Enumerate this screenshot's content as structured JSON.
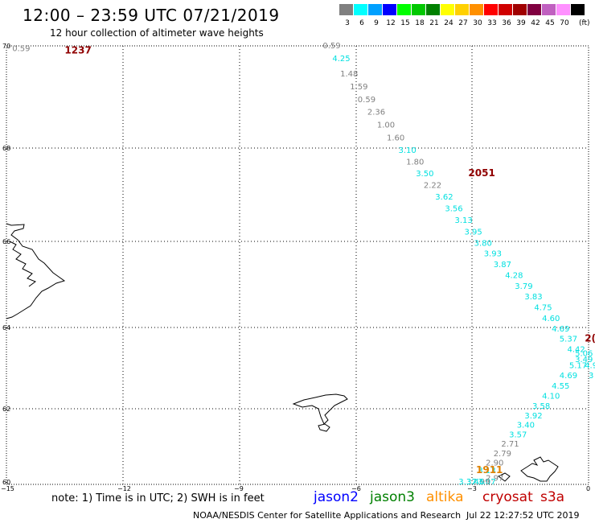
{
  "header": {
    "title": "12:00 – 23:59 UTC 07/21/2019",
    "subtitle": "12 hour collection of altimeter wave heights"
  },
  "legend": {
    "unit": "(ft)",
    "bins": [
      {
        "label": "3",
        "color": "#808080"
      },
      {
        "label": "6",
        "color": "#00ffff"
      },
      {
        "label": "9",
        "color": "#00a0ff"
      },
      {
        "label": "12",
        "color": "#0000ff"
      },
      {
        "label": "15",
        "color": "#00ff00"
      },
      {
        "label": "18",
        "color": "#00c800"
      },
      {
        "label": "21",
        "color": "#008000"
      },
      {
        "label": "24",
        "color": "#ffff00"
      },
      {
        "label": "27",
        "color": "#ffd000"
      },
      {
        "label": "30",
        "color": "#ff9000"
      },
      {
        "label": "33",
        "color": "#ff0000"
      },
      {
        "label": "36",
        "color": "#d00000"
      },
      {
        "label": "39",
        "color": "#a00000"
      },
      {
        "label": "42",
        "color": "#800040"
      },
      {
        "label": "45",
        "color": "#c060c0"
      },
      {
        "label": "70",
        "color": "#ff90ff"
      },
      {
        "label": "",
        "color": "#000000"
      }
    ]
  },
  "axes": {
    "lon_labels": [
      "−15",
      "−12",
      "−9",
      "−6",
      "−3",
      "0"
    ],
    "lat_labels": [
      "70",
      "68",
      "66",
      "64",
      "62",
      "60"
    ]
  },
  "tracks": [
    {
      "lon": -14.85,
      "lat": 69.9,
      "text": "0.59",
      "color": "#808080"
    },
    {
      "lon": -6.85,
      "lat": 69.95,
      "text": "0.59",
      "color": "#808080"
    },
    {
      "lon": -6.6,
      "lat": 69.7,
      "text": "4.25",
      "color": "#00e0e0"
    },
    {
      "lon": -6.4,
      "lat": 69.4,
      "text": "1.48",
      "color": "#808080"
    },
    {
      "lon": -6.15,
      "lat": 69.15,
      "text": "1.59",
      "color": "#808080"
    },
    {
      "lon": -5.95,
      "lat": 68.9,
      "text": "0.59",
      "color": "#808080"
    },
    {
      "lon": -5.7,
      "lat": 68.65,
      "text": "2.36",
      "color": "#808080"
    },
    {
      "lon": -5.45,
      "lat": 68.4,
      "text": "1.00",
      "color": "#808080"
    },
    {
      "lon": -5.2,
      "lat": 68.15,
      "text": "1.60",
      "color": "#808080"
    },
    {
      "lon": -4.9,
      "lat": 67.9,
      "text": "3.10",
      "color": "#00e0e0"
    },
    {
      "lon": -4.7,
      "lat": 67.65,
      "text": "1.80",
      "color": "#808080"
    },
    {
      "lon": -4.45,
      "lat": 67.4,
      "text": "3.50",
      "color": "#00e0e0"
    },
    {
      "lon": -4.25,
      "lat": 67.15,
      "text": "2.22",
      "color": "#808080"
    },
    {
      "lon": -3.95,
      "lat": 66.9,
      "text": "3.62",
      "color": "#00e0e0"
    },
    {
      "lon": -3.7,
      "lat": 66.65,
      "text": "3.56",
      "color": "#00e0e0"
    },
    {
      "lon": -3.45,
      "lat": 66.4,
      "text": "3.13",
      "color": "#00e0e0"
    },
    {
      "lon": -3.2,
      "lat": 66.15,
      "text": "3.95",
      "color": "#00e0e0"
    },
    {
      "lon": -2.95,
      "lat": 65.9,
      "text": "3.80",
      "color": "#00e0e0"
    },
    {
      "lon": -2.7,
      "lat": 65.65,
      "text": "3.93",
      "color": "#00e0e0"
    },
    {
      "lon": -2.45,
      "lat": 65.4,
      "text": "3.87",
      "color": "#00e0e0"
    },
    {
      "lon": -2.15,
      "lat": 65.15,
      "text": "4.28",
      "color": "#00e0e0"
    },
    {
      "lon": -1.9,
      "lat": 64.9,
      "text": "3.79",
      "color": "#00e0e0"
    },
    {
      "lon": -1.65,
      "lat": 64.65,
      "text": "3.83",
      "color": "#00e0e0"
    },
    {
      "lon": -1.4,
      "lat": 64.4,
      "text": "4.75",
      "color": "#00e0e0"
    },
    {
      "lon": -1.2,
      "lat": 64.15,
      "text": "4.60",
      "color": "#00e0e0"
    },
    {
      "lon": -0.95,
      "lat": 63.9,
      "text": "4.69",
      "color": "#00e0e0"
    },
    {
      "lon": -0.75,
      "lat": 63.65,
      "text": "5.37",
      "color": "#00e0e0"
    },
    {
      "lon": -0.55,
      "lat": 63.4,
      "text": "4.42",
      "color": "#00e0e0"
    },
    {
      "lon": -0.35,
      "lat": 63.3,
      "text": "5.06",
      "color": "#00e0e0"
    },
    {
      "lon": -0.35,
      "lat": 63.15,
      "text": "3.49",
      "color": "#00e0e0"
    },
    {
      "lon": -0.5,
      "lat": 63.0,
      "text": "5.17",
      "color": "#00e0e0"
    },
    {
      "lon": -0.1,
      "lat": 63.0,
      "text": "4.9",
      "color": "#00e0e0"
    },
    {
      "lon": 0.0,
      "lat": 62.75,
      "text": "3",
      "color": "#00e0e0"
    },
    {
      "lon": -0.75,
      "lat": 62.75,
      "text": "4.69",
      "color": "#00e0e0"
    },
    {
      "lon": -0.95,
      "lat": 62.5,
      "text": "4.55",
      "color": "#00e0e0"
    },
    {
      "lon": -1.2,
      "lat": 62.25,
      "text": "4.10",
      "color": "#00e0e0"
    },
    {
      "lon": -1.45,
      "lat": 62.0,
      "text": "3.58",
      "color": "#00e0e0"
    },
    {
      "lon": -1.65,
      "lat": 61.75,
      "text": "3.92",
      "color": "#00e0e0"
    },
    {
      "lon": -1.85,
      "lat": 61.5,
      "text": "3.40",
      "color": "#00e0e0"
    },
    {
      "lon": -2.05,
      "lat": 61.25,
      "text": "3.57",
      "color": "#00e0e0"
    },
    {
      "lon": -2.25,
      "lat": 61.0,
      "text": "2.71",
      "color": "#808080"
    },
    {
      "lon": -2.45,
      "lat": 60.75,
      "text": "2.79",
      "color": "#808080"
    },
    {
      "lon": -2.65,
      "lat": 60.5,
      "text": "2.90",
      "color": "#808080"
    },
    {
      "lon": -2.85,
      "lat": 60.3,
      "text": "3.13",
      "color": "#00e0e0"
    },
    {
      "lon": -2.65,
      "lat": 60.1,
      "text": "2.97",
      "color": "#808080"
    },
    {
      "lon": -2.85,
      "lat": 59.85,
      "text": "3.07",
      "color": "#00e0e0"
    },
    {
      "lon": -3.0,
      "lat": 59.6,
      "text": "2.99",
      "color": "#808080"
    },
    {
      "lon": -3.15,
      "lat": 59.35,
      "text": "3.46",
      "color": "#00e0e0"
    },
    {
      "lon": -3.35,
      "lat": 59.1,
      "text": "3.37",
      "color": "#00e0e0"
    }
  ],
  "pass_times": [
    {
      "lon": -13.5,
      "lat": 69.85,
      "text": "1237",
      "color": "#900000"
    },
    {
      "lon": -3.1,
      "lat": 67.4,
      "text": "2051",
      "color": "#900000"
    },
    {
      "lon": -0.1,
      "lat": 63.65,
      "text": "2(",
      "color": "#900000"
    },
    {
      "lon": -2.9,
      "lat": 60.3,
      "text": "1911",
      "color": "#e08000"
    }
  ],
  "footer": {
    "note": "note: 1) Time is in UTC; 2) SWH is in feet",
    "missions": [
      {
        "name": "jason2",
        "color": "#0000ff"
      },
      {
        "name": "jason3",
        "color": "#008000"
      },
      {
        "name": "altika",
        "color": "#ff9000"
      },
      {
        "name": "cryosat",
        "color": "#c00000"
      },
      {
        "name": "s3a",
        "color": "#c00000"
      }
    ],
    "credit": "NOAA/NESDIS Center for Satellite Applications and Research",
    "timestamp": "Jul 22 12:27:52 UTC 2019"
  }
}
